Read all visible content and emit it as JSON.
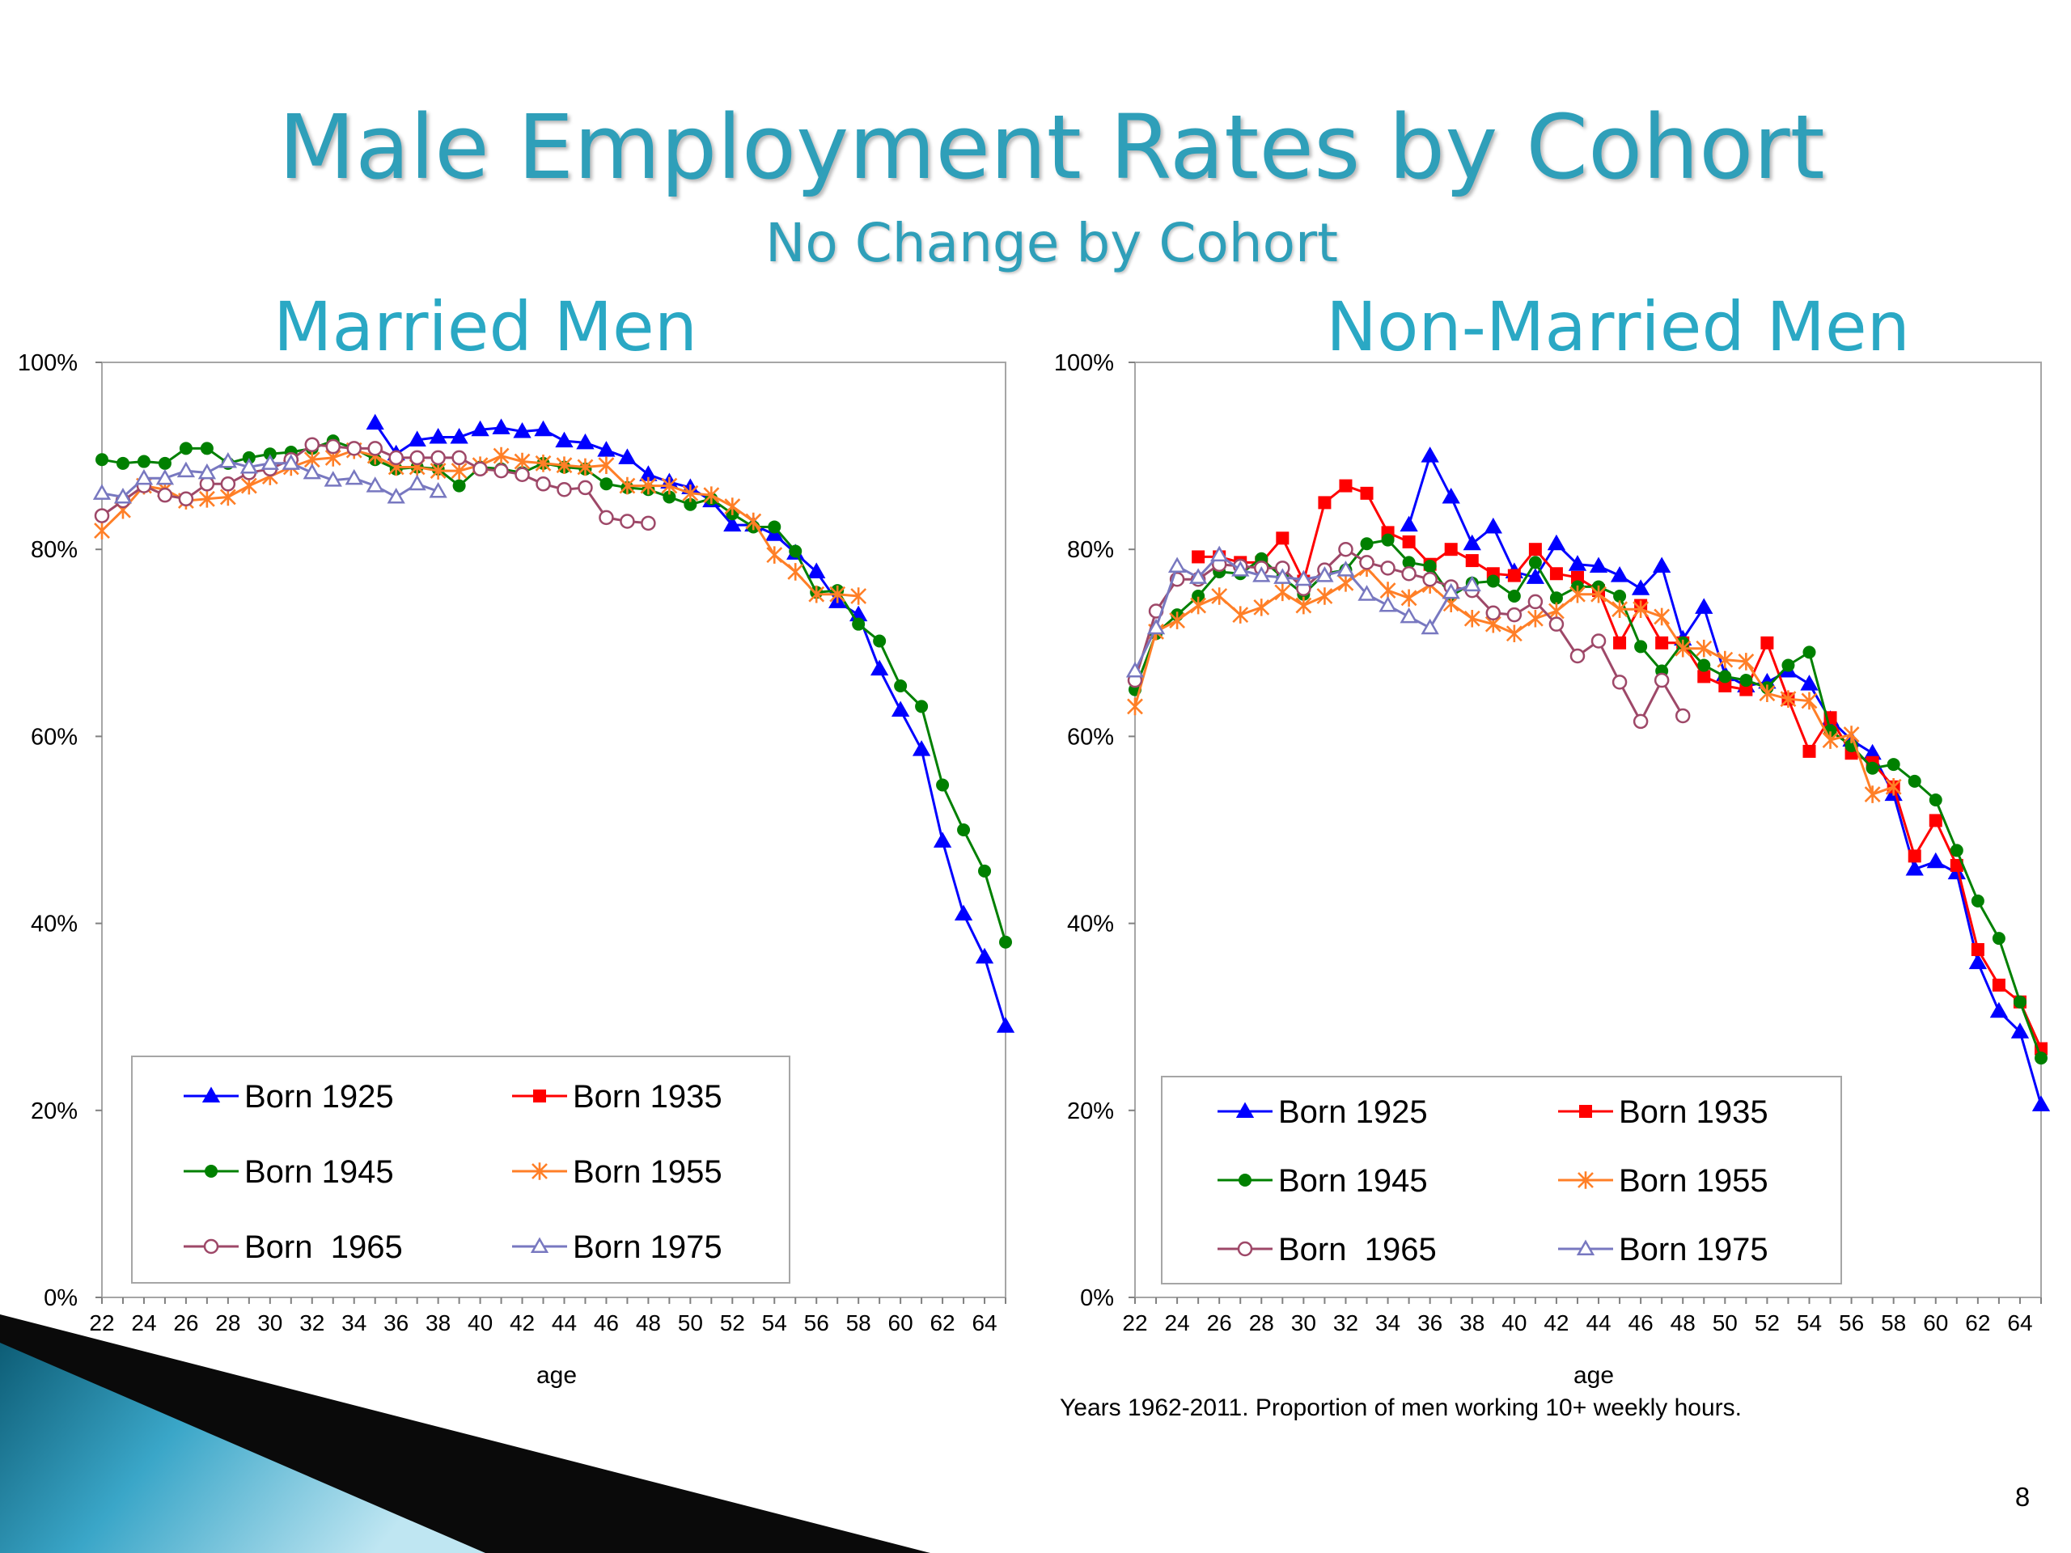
{
  "slide": {
    "title": "Male Employment Rates by Cohort",
    "subtitle": "No Change by Cohort",
    "footnote": "Years 1962-2011. Proportion of men working 10+ weekly hours.",
    "page_number": "8"
  },
  "chart_data": [
    {
      "type": "line",
      "title": "Married Men",
      "xlabel": "age",
      "ylabel": "",
      "x_ticks": [
        22,
        24,
        26,
        28,
        30,
        32,
        34,
        36,
        38,
        40,
        42,
        44,
        46,
        48,
        50,
        52,
        54,
        56,
        58,
        60,
        62,
        64
      ],
      "y_ticks": [
        "0%",
        "20%",
        "40%",
        "60%",
        "80%",
        "100%"
      ],
      "xlim": [
        22,
        65
      ],
      "ylim": [
        0,
        100
      ],
      "grid": false,
      "legend_position": "bottom-left",
      "series": [
        {
          "name": "Born 1925",
          "color": "#0000ff",
          "marker": "triangle-filled",
          "x": [
            35,
            36,
            37,
            38,
            39,
            40,
            41,
            42,
            43,
            44,
            45,
            46,
            47,
            48,
            49,
            50,
            51,
            52,
            53,
            54,
            55,
            56,
            57,
            58,
            59,
            60,
            61,
            62,
            63,
            64,
            65
          ],
          "values": [
            93.5,
            90.2,
            91.7,
            92.0,
            92.0,
            92.8,
            93.0,
            92.6,
            92.8,
            91.6,
            91.4,
            90.6,
            89.8,
            88.0,
            87.2,
            86.6,
            85.2,
            82.6,
            82.6,
            81.6,
            79.6,
            77.6,
            74.4,
            73.0,
            67.2,
            62.8,
            58.6,
            48.8,
            41.0,
            36.4,
            29.0
          ]
        },
        {
          "name": "Born 1935",
          "color": "#ff0000",
          "marker": "square-filled",
          "x": [],
          "values": []
        },
        {
          "name": "Born 1945",
          "color": "#008000",
          "marker": "circle-filled",
          "x": [
            22,
            23,
            24,
            25,
            26,
            27,
            28,
            29,
            30,
            31,
            32,
            33,
            34,
            35,
            36,
            37,
            38,
            39,
            40,
            41,
            42,
            43,
            44,
            45,
            46,
            47,
            48,
            49,
            50,
            51,
            52,
            53,
            54,
            55,
            56,
            57,
            58,
            59,
            60,
            61,
            62,
            63,
            64,
            65
          ],
          "values": [
            89.6,
            89.2,
            89.4,
            89.2,
            90.8,
            90.8,
            89.2,
            89.8,
            90.2,
            90.4,
            90.8,
            91.6,
            90.8,
            89.6,
            88.6,
            88.8,
            88.6,
            86.8,
            88.8,
            88.6,
            88.2,
            89.2,
            88.8,
            88.6,
            87.0,
            86.6,
            86.4,
            85.6,
            84.8,
            85.4,
            83.8,
            82.4,
            82.4,
            79.8,
            75.4,
            75.6,
            72.0,
            70.2,
            65.4,
            63.2,
            54.8,
            50.0,
            45.6,
            38.0
          ]
        },
        {
          "name": "Born 1955",
          "color": "#ff7f27",
          "marker": "asterisk",
          "x": [
            22,
            23,
            24,
            25,
            26,
            27,
            28,
            29,
            30,
            31,
            32,
            33,
            34,
            35,
            36,
            37,
            38,
            39,
            40,
            41,
            42,
            43,
            44,
            45,
            46,
            47,
            48,
            49,
            50,
            51,
            52,
            53,
            54,
            55,
            56,
            57,
            58
          ],
          "values": [
            82.0,
            84.2,
            86.8,
            86.4,
            85.2,
            85.4,
            85.6,
            86.8,
            87.8,
            88.8,
            89.6,
            89.8,
            90.6,
            90.0,
            88.8,
            88.8,
            88.4,
            88.4,
            89.0,
            90.0,
            89.4,
            89.2,
            89.0,
            88.8,
            89.0,
            86.8,
            86.8,
            86.8,
            86.0,
            85.8,
            84.6,
            83.0,
            79.4,
            77.6,
            75.2,
            75.2,
            75.0
          ]
        },
        {
          "name": "Born  1965",
          "color": "#9e4868",
          "marker": "circle-open",
          "x": [
            22,
            23,
            24,
            25,
            26,
            27,
            28,
            29,
            30,
            31,
            32,
            33,
            34,
            35,
            36,
            37,
            38,
            39,
            40,
            41,
            42,
            43,
            44,
            45,
            46,
            47,
            48
          ],
          "values": [
            83.6,
            85.2,
            86.8,
            85.8,
            85.4,
            87.0,
            87.0,
            88.2,
            88.6,
            89.6,
            91.2,
            91.0,
            90.8,
            90.8,
            89.8,
            89.8,
            89.8,
            89.8,
            88.6,
            88.4,
            88.0,
            87.0,
            86.4,
            86.6,
            83.4,
            83.0,
            82.8
          ]
        },
        {
          "name": "Born 1975",
          "color": "#7878c0",
          "marker": "triangle-open",
          "x": [
            22,
            23,
            24,
            25,
            26,
            27,
            28,
            29,
            30,
            31,
            32,
            33,
            34,
            35,
            36,
            37,
            38
          ],
          "values": [
            86.0,
            85.6,
            87.6,
            87.6,
            88.4,
            88.2,
            89.4,
            88.8,
            89.2,
            89.2,
            88.2,
            87.4,
            87.6,
            86.8,
            85.6,
            87.0,
            86.2
          ]
        }
      ]
    },
    {
      "type": "line",
      "title": "Non-Married Men",
      "xlabel": "age",
      "ylabel": "",
      "x_ticks": [
        22,
        24,
        26,
        28,
        30,
        32,
        34,
        36,
        38,
        40,
        42,
        44,
        46,
        48,
        50,
        52,
        54,
        56,
        58,
        60,
        62,
        64
      ],
      "y_ticks": [
        "0%",
        "20%",
        "40%",
        "60%",
        "80%",
        "100%"
      ],
      "xlim": [
        22,
        65
      ],
      "ylim": [
        0,
        100
      ],
      "grid": false,
      "legend_position": "bottom-left",
      "series": [
        {
          "name": "Born 1925",
          "color": "#0000ff",
          "marker": "triangle-filled",
          "x": [
            35,
            36,
            37,
            38,
            39,
            40,
            41,
            42,
            43,
            44,
            45,
            46,
            47,
            48,
            49,
            50,
            51,
            52,
            53,
            54,
            55,
            56,
            57,
            58,
            59,
            60,
            61,
            62,
            63,
            64,
            65
          ],
          "values": [
            82.6,
            90.0,
            85.6,
            80.6,
            82.4,
            77.6,
            77.0,
            80.6,
            78.4,
            78.2,
            77.2,
            75.8,
            78.2,
            70.4,
            73.8,
            66.6,
            65.4,
            65.8,
            67.0,
            65.6,
            61.8,
            59.6,
            58.2,
            53.8,
            45.8,
            46.6,
            45.4,
            35.8,
            30.6,
            28.4,
            20.6
          ]
        },
        {
          "name": "Born 1935",
          "color": "#ff0000",
          "marker": "square-filled",
          "x": [
            25,
            26,
            27,
            28,
            29,
            30,
            31,
            32,
            33,
            34,
            35,
            36,
            37,
            38,
            39,
            40,
            41,
            42,
            43,
            44,
            45,
            46,
            47,
            48,
            49,
            50,
            51,
            52,
            53,
            54,
            55,
            56,
            57,
            58,
            59,
            60,
            61,
            62,
            63,
            64,
            65
          ],
          "values": [
            79.2,
            79.2,
            78.6,
            78.6,
            81.2,
            76.6,
            85.0,
            86.8,
            86.0,
            81.8,
            80.8,
            78.4,
            80.0,
            78.8,
            77.4,
            77.2,
            80.0,
            77.4,
            77.0,
            75.6,
            70.0,
            74.0,
            70.0,
            70.0,
            66.4,
            65.4,
            65.0,
            70.0,
            64.0,
            58.4,
            62.0,
            58.2,
            57.2,
            54.6,
            47.2,
            51.0,
            46.2,
            37.2,
            33.4,
            31.6,
            26.6
          ]
        },
        {
          "name": "Born 1945",
          "color": "#008000",
          "marker": "circle-filled",
          "x": [
            22,
            23,
            24,
            25,
            26,
            27,
            28,
            29,
            30,
            31,
            32,
            33,
            34,
            35,
            36,
            37,
            38,
            39,
            40,
            41,
            42,
            43,
            44,
            45,
            46,
            47,
            48,
            49,
            50,
            51,
            52,
            53,
            54,
            55,
            56,
            57,
            58,
            59,
            60,
            61,
            62,
            63,
            64,
            65
          ],
          "values": [
            65.0,
            71.0,
            73.0,
            75.0,
            77.6,
            77.4,
            79.0,
            77.0,
            75.2,
            77.4,
            77.8,
            80.6,
            81.0,
            78.6,
            78.2,
            75.0,
            76.4,
            76.6,
            75.0,
            78.6,
            74.8,
            76.0,
            76.0,
            75.0,
            69.6,
            67.0,
            70.0,
            67.6,
            66.4,
            66.0,
            65.2,
            67.6,
            69.0,
            60.6,
            59.0,
            56.6,
            57.0,
            55.2,
            53.2,
            47.8,
            42.4,
            38.4,
            31.6,
            25.6
          ]
        },
        {
          "name": "Born 1955",
          "color": "#ff7f27",
          "marker": "asterisk",
          "x": [
            22,
            23,
            24,
            25,
            26,
            27,
            28,
            29,
            30,
            31,
            32,
            33,
            34,
            35,
            36,
            37,
            38,
            39,
            40,
            41,
            42,
            43,
            44,
            45,
            46,
            47,
            48,
            49,
            50,
            51,
            52,
            53,
            54,
            55,
            56,
            57,
            58
          ],
          "values": [
            63.2,
            71.2,
            72.4,
            74.0,
            75.0,
            73.0,
            73.8,
            75.4,
            74.0,
            75.0,
            76.4,
            78.0,
            75.6,
            74.8,
            76.2,
            74.2,
            72.6,
            72.0,
            71.0,
            72.6,
            73.4,
            75.2,
            75.2,
            73.6,
            73.6,
            72.8,
            69.4,
            69.4,
            68.2,
            68.0,
            64.6,
            64.0,
            63.8,
            59.6,
            60.2,
            53.8,
            54.6
          ]
        },
        {
          "name": "Born  1965",
          "color": "#9e4868",
          "marker": "circle-open",
          "x": [
            22,
            23,
            24,
            25,
            26,
            27,
            28,
            29,
            30,
            31,
            32,
            33,
            34,
            35,
            36,
            37,
            38,
            39,
            40,
            41,
            42,
            43,
            44,
            45,
            46,
            47,
            48
          ],
          "values": [
            66.0,
            73.4,
            76.8,
            76.8,
            78.4,
            78.2,
            78.0,
            78.0,
            75.8,
            77.8,
            80.0,
            78.6,
            78.0,
            77.4,
            76.8,
            76.0,
            75.6,
            73.2,
            73.0,
            74.4,
            72.0,
            68.6,
            70.2,
            65.8,
            61.6,
            66.0,
            62.2
          ]
        },
        {
          "name": "Born 1975",
          "color": "#7878c0",
          "marker": "triangle-open",
          "x": [
            22,
            23,
            24,
            25,
            26,
            27,
            28,
            29,
            30,
            31,
            32,
            33,
            34,
            35,
            36,
            37,
            38
          ],
          "values": [
            67.0,
            71.6,
            78.2,
            77.0,
            79.4,
            77.8,
            77.2,
            77.0,
            76.8,
            77.2,
            77.8,
            75.2,
            74.0,
            72.8,
            71.6,
            75.4,
            76.2
          ]
        }
      ]
    }
  ]
}
